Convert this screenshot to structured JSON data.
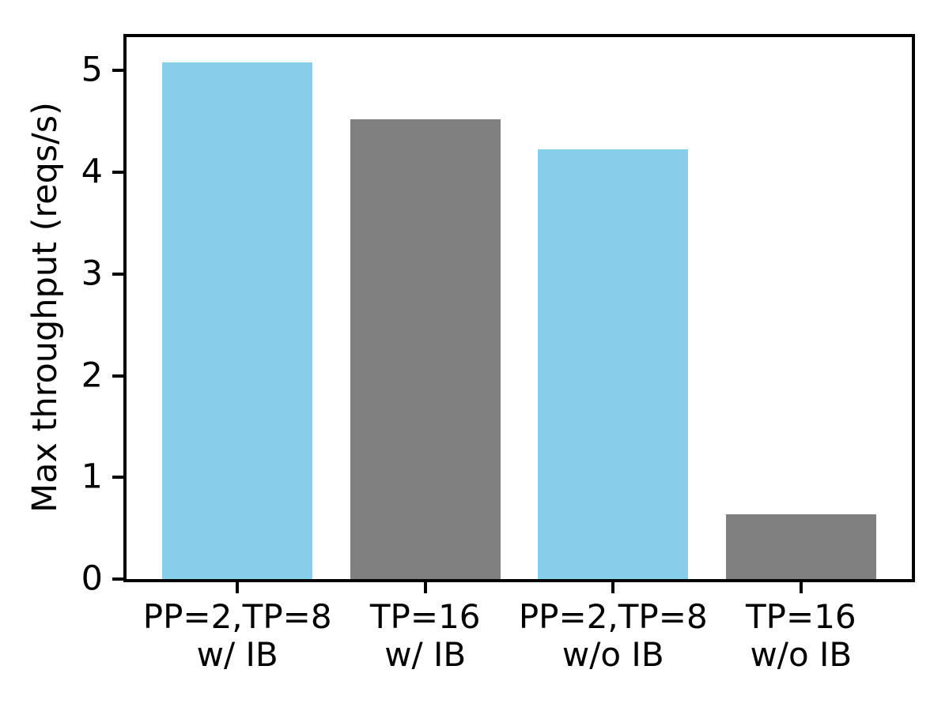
{
  "chart_data": {
    "type": "bar",
    "title": "",
    "xlabel": "",
    "ylabel": "Max throughput (reqs/s)",
    "categories": [
      "PP=2,TP=8\nw/ IB",
      "TP=16\nw/ IB",
      "PP=2,TP=8\nw/o IB",
      "TP=16\nw/o IB"
    ],
    "values": [
      5.08,
      4.52,
      4.23,
      0.64
    ],
    "bar_colors": [
      "#87CEEB",
      "#808080",
      "#87CEEB",
      "#808080"
    ],
    "yticks": [
      0,
      1,
      2,
      3,
      4,
      5
    ],
    "ylim": [
      0,
      5.33
    ],
    "xlim": [
      -0.59,
      3.59
    ],
    "bar_width": 0.8,
    "grid": false,
    "legend": null
  },
  "colors": {
    "background": "#ffffff",
    "spine": "#000000",
    "text": "#000000",
    "skyblue": "#87CEEB",
    "gray": "#808080"
  }
}
